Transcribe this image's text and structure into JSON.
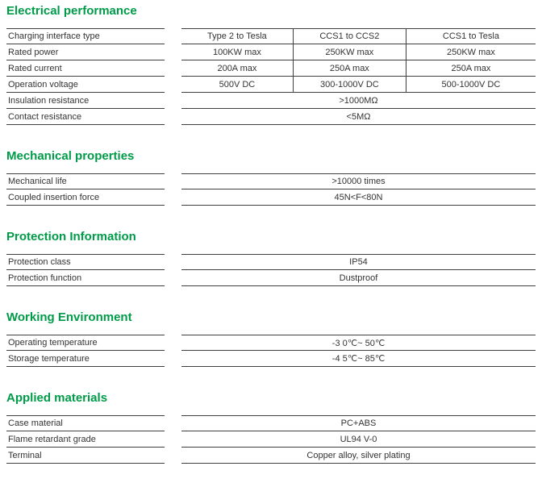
{
  "page": {
    "accent_color": "#009b48",
    "line_color": "#3f3f3f",
    "text_color": "#333333"
  },
  "sections": [
    {
      "id": "electrical-performance",
      "title": "Electrical performance",
      "rows": [
        {
          "label": "Charging interface type",
          "values": [
            "Type 2 to Tesla",
            "CCS1 to CCS2",
            "CCS1 to Tesla"
          ]
        },
        {
          "label": "Rated power",
          "values": [
            "100KW max",
            "250KW max",
            "250KW max"
          ]
        },
        {
          "label": "Rated current",
          "values": [
            "200A max",
            "250A max",
            "250A max"
          ]
        },
        {
          "label": "Operation voltage",
          "values": [
            "500V DC",
            "300-1000V DC",
            "500-1000V DC"
          ]
        },
        {
          "label": "Insulation resistance",
          "values": [
            ">1000MΩ"
          ]
        },
        {
          "label": "Contact resistance",
          "values": [
            "<5MΩ"
          ]
        }
      ]
    },
    {
      "id": "mechanical-properties",
      "title": "Mechanical properties",
      "rows": [
        {
          "label": "Mechanical life",
          "values": [
            ">10000 times"
          ]
        },
        {
          "label": "Coupled insertion force",
          "values": [
            "45N<F<80N"
          ]
        }
      ]
    },
    {
      "id": "protection-information",
      "title": "Protection Information",
      "rows": [
        {
          "label": "Protection class",
          "values": [
            "IP54"
          ]
        },
        {
          "label": "Protection function",
          "values": [
            "Dustproof"
          ]
        }
      ]
    },
    {
      "id": "working-environment",
      "title": "Working Environment",
      "rows": [
        {
          "label": "Operating temperature",
          "values": [
            "-3 0℃~ 50℃"
          ]
        },
        {
          "label": "Storage temperature",
          "values": [
            "-4 5℃~ 85℃"
          ]
        }
      ]
    },
    {
      "id": "applied-materials",
      "title": "Applied materials",
      "rows": [
        {
          "label": "Case material",
          "values": [
            "PC+ABS"
          ]
        },
        {
          "label": "Flame retardant grade",
          "values": [
            "UL94 V-0"
          ]
        },
        {
          "label": "Terminal",
          "values": [
            "Copper alloy, silver plating"
          ]
        }
      ]
    }
  ]
}
